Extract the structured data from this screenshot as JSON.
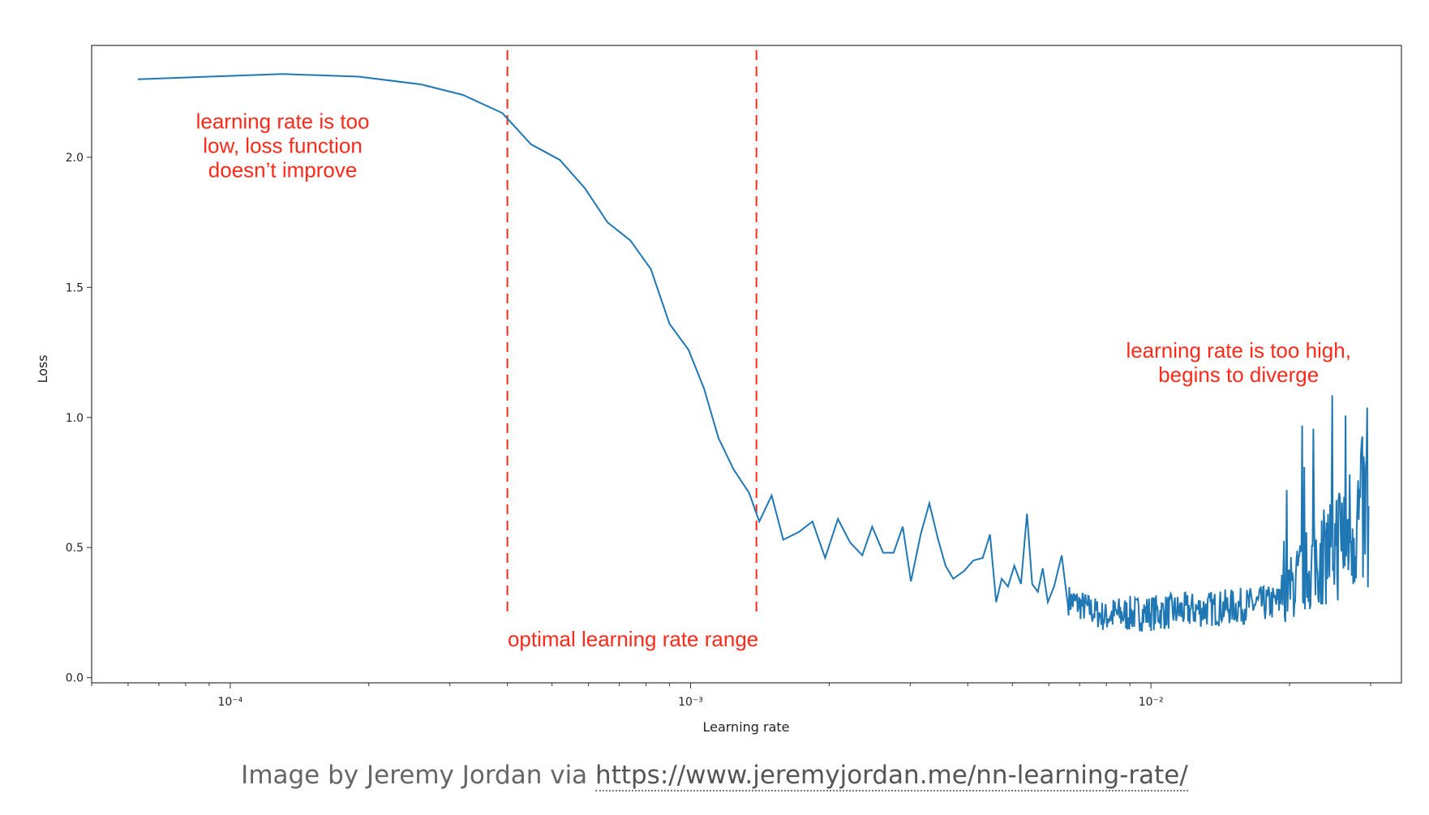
{
  "chart_data": {
    "type": "line",
    "xlabel": "Learning rate",
    "ylabel": "Loss",
    "xscale": "log",
    "xlim": [
      5e-05,
      0.035
    ],
    "ylim": [
      -0.02,
      2.43
    ],
    "xticks_major": [
      {
        "value": 0.0001,
        "label": "10⁻⁴"
      },
      {
        "value": 0.001,
        "label": "10⁻³"
      },
      {
        "value": 0.01,
        "label": "10⁻²"
      }
    ],
    "yticks": [
      {
        "value": 0.0,
        "label": "0.0"
      },
      {
        "value": 0.5,
        "label": "0.5"
      },
      {
        "value": 1.0,
        "label": "1.0"
      },
      {
        "value": 1.5,
        "label": "1.5"
      },
      {
        "value": 2.0,
        "label": "2.0"
      }
    ],
    "grid": false,
    "line_color": "#1f77b4",
    "annotation_color": "#ff2a1a",
    "x_start": 6.3e-05,
    "x_end": 0.0297,
    "series_points": [
      [
        6.3e-05,
        2.3
      ],
      [
        9e-05,
        2.31
      ],
      [
        0.00013,
        2.32
      ],
      [
        0.00019,
        2.31
      ],
      [
        0.00026,
        2.28
      ],
      [
        0.00032,
        2.24
      ],
      [
        0.00039,
        2.17
      ],
      [
        0.00045,
        2.05
      ],
      [
        0.00052,
        1.99
      ],
      [
        0.00059,
        1.88
      ],
      [
        0.00066,
        1.75
      ],
      [
        0.00074,
        1.68
      ],
      [
        0.00082,
        1.57
      ],
      [
        0.0009,
        1.36
      ],
      [
        0.00099,
        1.26
      ],
      [
        0.00107,
        1.11
      ],
      [
        0.00115,
        0.92
      ],
      [
        0.00124,
        0.8
      ],
      [
        0.00134,
        0.71
      ],
      [
        0.00141,
        0.6
      ],
      [
        0.0015,
        0.7
      ],
      [
        0.00159,
        0.53
      ],
      [
        0.00172,
        0.56
      ],
      [
        0.00184,
        0.6
      ],
      [
        0.00196,
        0.46
      ],
      [
        0.00209,
        0.61
      ],
      [
        0.00222,
        0.52
      ],
      [
        0.00236,
        0.47
      ],
      [
        0.00248,
        0.58
      ],
      [
        0.00262,
        0.48
      ],
      [
        0.00276,
        0.48
      ],
      [
        0.00289,
        0.58
      ],
      [
        0.00301,
        0.37
      ],
      [
        0.00316,
        0.55
      ],
      [
        0.0033,
        0.67
      ],
      [
        0.00345,
        0.53
      ],
      [
        0.00358,
        0.43
      ],
      [
        0.00372,
        0.38
      ],
      [
        0.00393,
        0.41
      ],
      [
        0.00411,
        0.45
      ],
      [
        0.00431,
        0.46
      ],
      [
        0.00447,
        0.55
      ],
      [
        0.00461,
        0.29
      ],
      [
        0.00474,
        0.38
      ],
      [
        0.00489,
        0.35
      ],
      [
        0.00505,
        0.43
      ],
      [
        0.00522,
        0.36
      ],
      [
        0.00538,
        0.63
      ],
      [
        0.00552,
        0.36
      ],
      [
        0.00568,
        0.33
      ],
      [
        0.00582,
        0.42
      ],
      [
        0.00597,
        0.29
      ],
      [
        0.00616,
        0.35
      ],
      [
        0.0064,
        0.47
      ],
      [
        0.0066,
        0.28
      ]
    ],
    "noise_seed": 7,
    "vlines": [
      {
        "x": 0.0004,
        "color": "#ff2a1a",
        "style": "dashed"
      },
      {
        "x": 0.00139,
        "color": "#ff2a1a",
        "style": "dashed"
      }
    ],
    "annotations": [
      {
        "lines": [
          "learning rate is too",
          "low, loss function",
          "doesn’t improve"
        ],
        "x": 0.00013,
        "y": 2.11
      },
      {
        "lines": [
          "optimal learning rate range"
        ],
        "x": 0.00075,
        "y": 0.12
      },
      {
        "lines": [
          "learning rate is too high,",
          "begins to diverge"
        ],
        "x": 0.0155,
        "y": 1.23
      }
    ]
  },
  "caption": {
    "prefix": "Image by Jeremy Jordan via ",
    "link_text": "https://www.jeremyjordan.me/nn-learning-rate/"
  }
}
